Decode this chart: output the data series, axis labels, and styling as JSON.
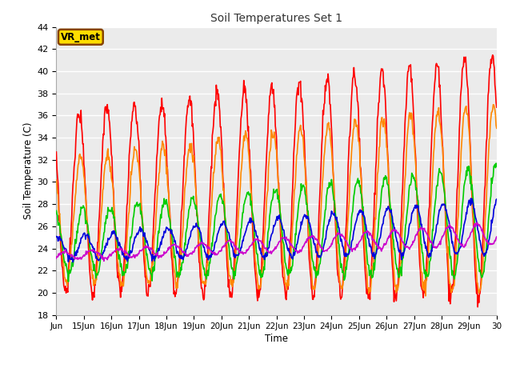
{
  "title": "Soil Temperatures Set 1",
  "xlabel": "Time",
  "ylabel": "Soil Temperature (C)",
  "ylim": [
    18,
    44
  ],
  "background_color": "#ebebeb",
  "grid_color": "#ffffff",
  "fig_color": "#ffffff",
  "xtick_labels": [
    "Jun",
    "15Jun",
    "16Jun",
    "17Jun",
    "18Jun",
    "19Jun",
    "20Jun",
    "21Jun",
    "22Jun",
    "23Jun",
    "24Jun",
    "25Jun",
    "26Jun",
    "27Jun",
    "28Jun",
    "29Jun",
    "30"
  ],
  "ytick_values": [
    18,
    20,
    22,
    24,
    26,
    28,
    30,
    32,
    34,
    36,
    38,
    40,
    42,
    44
  ],
  "series": {
    "Tsoil -2cm": {
      "color": "#ff0000",
      "linewidth": 1.2
    },
    "Tsoil -4cm": {
      "color": "#ff8800",
      "linewidth": 1.2
    },
    "Tsoil -8cm": {
      "color": "#00cc00",
      "linewidth": 1.2
    },
    "Tsoil -16cm": {
      "color": "#0000dd",
      "linewidth": 1.2
    },
    "Tsoil -32cm": {
      "color": "#cc00cc",
      "linewidth": 1.2
    }
  },
  "vr_met_label": "VR_met",
  "vr_met_bg": "#ffdd00",
  "vr_met_border": "#884400",
  "n_days": 16,
  "samples_per_day": 48
}
